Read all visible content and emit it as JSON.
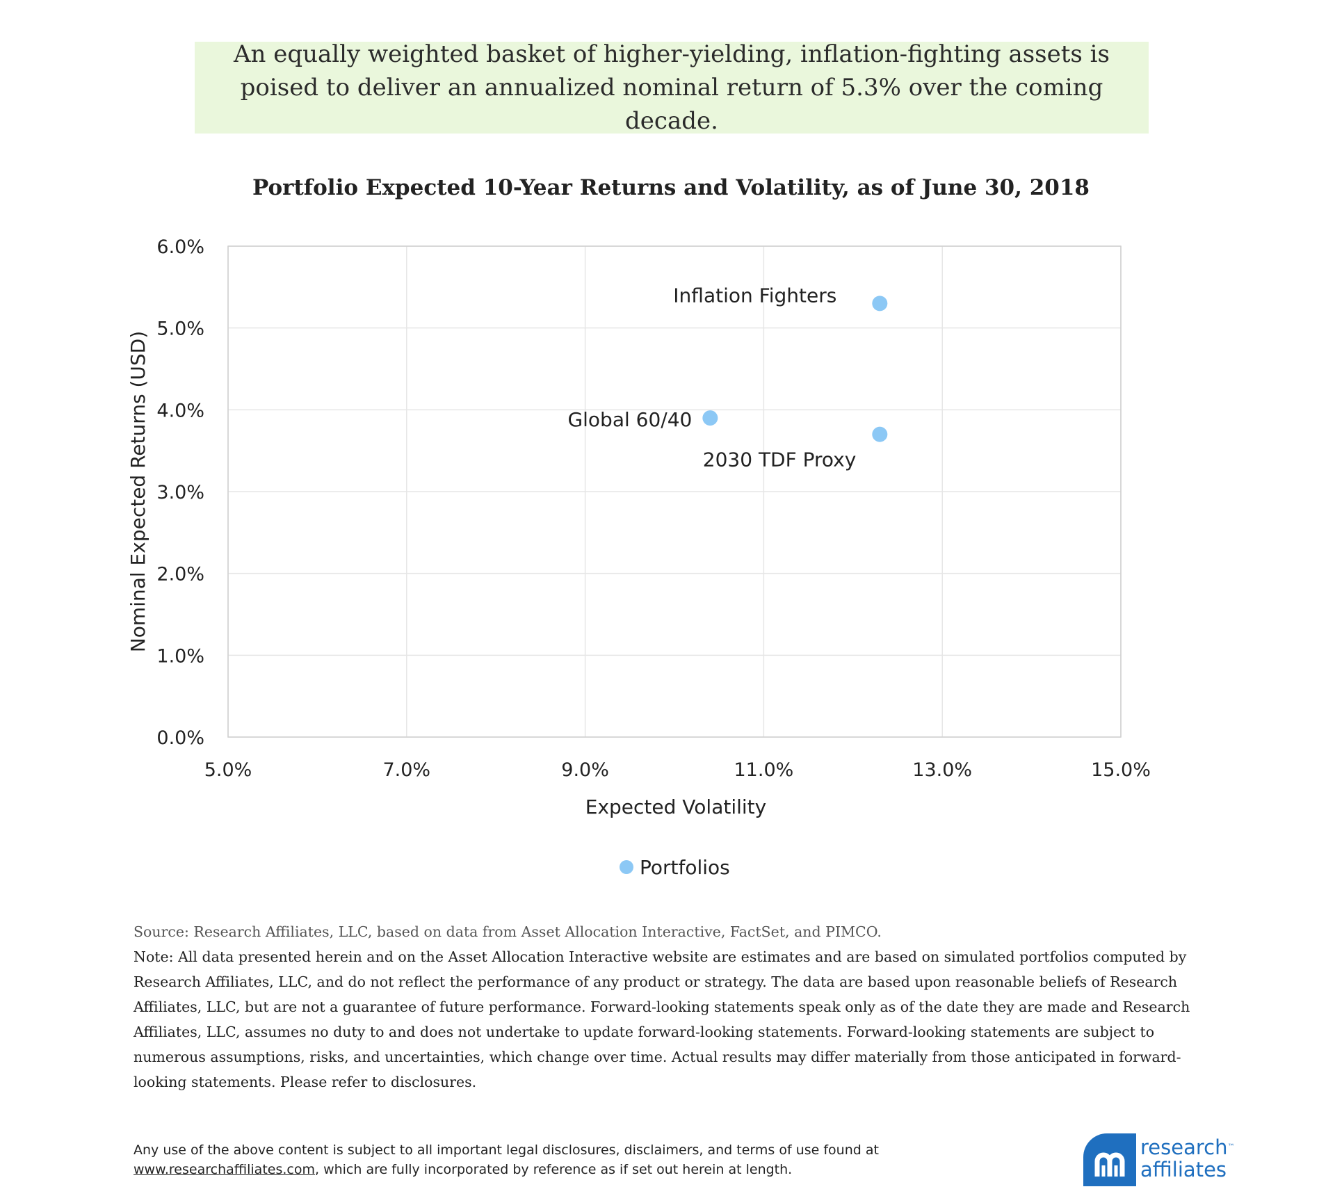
{
  "banner": {
    "text": "An equally weighted basket of higher-yielding, inflation-fighting assets is poised to deliver an annualized nominal return of 5.3% over the coming decade."
  },
  "chart_data": {
    "type": "scatter",
    "title": "Portfolio Expected 10-Year Returns and Volatility, as of June 30, 2018",
    "xlabel": "Expected Volatility",
    "ylabel": "Nominal Expected Returns (USD)",
    "xlim": [
      5.0,
      15.0
    ],
    "ylim": [
      0.0,
      6.0
    ],
    "x_ticks": [
      "5.0%",
      "7.0%",
      "9.0%",
      "11.0%",
      "13.0%",
      "15.0%"
    ],
    "y_ticks": [
      "0.0%",
      "1.0%",
      "2.0%",
      "3.0%",
      "4.0%",
      "5.0%",
      "6.0%"
    ],
    "grid": true,
    "legend_position": "bottom",
    "series": [
      {
        "name": "Portfolios",
        "color": "#8cc8f5",
        "points": [
          {
            "label": "Inflation Fighters",
            "x": 12.3,
            "y": 5.3
          },
          {
            "label": "Global 60/40",
            "x": 10.4,
            "y": 3.9
          },
          {
            "label": "2030 TDF Proxy",
            "x": 12.3,
            "y": 3.7
          }
        ]
      }
    ]
  },
  "notes": {
    "source": "Source: Research Affiliates, LLC, based on data from Asset Allocation Interactive, FactSet, and PIMCO.",
    "note": "Note: All data presented herein and on the Asset Allocation Interactive website are estimates and are based on simulated portfolios computed by Research Affiliates, LLC, and do not reflect the performance of any product or strategy. The data are based upon reasonable beliefs of Research Affiliates, LLC, but are not a guarantee of future performance. Forward-looking statements speak only as of the date they are made and Research Affiliates, LLC, assumes no duty to and does not undertake to update forward-looking statements. Forward-looking statements are subject to numerous assumptions, risks, and uncertainties, which change over time. Actual results may differ materially from those anticipated in forward-looking statements. Please refer to disclosures."
  },
  "footer": {
    "line1": "Any use of the above content is subject to all important legal disclosures, disclaimers, and terms of use found at",
    "link": "www.researchaffiliates.com",
    "line2_rest": ", which are fully incorporated by reference as if set out herein at length."
  },
  "logo": {
    "line1": "research",
    "tm": "™",
    "line2": "affiliates",
    "color": "#1f6fbf"
  }
}
